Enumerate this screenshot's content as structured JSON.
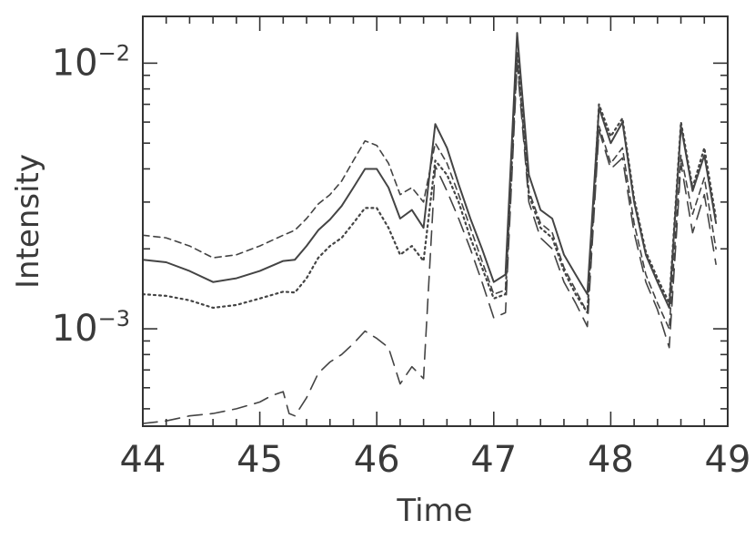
{
  "chart_data": {
    "type": "line",
    "xlabel": "Time",
    "ylabel": "Intensity",
    "xlim": [
      44,
      49
    ],
    "ylim": [
      0.00043,
      0.015
    ],
    "yscale": "log",
    "grid": false,
    "legend": "none",
    "x_ticks": [
      {
        "value": 44,
        "label": "44"
      },
      {
        "value": 45,
        "label": "45"
      },
      {
        "value": 46,
        "label": "46"
      },
      {
        "value": 47,
        "label": "47"
      },
      {
        "value": 48,
        "label": "48"
      },
      {
        "value": 49,
        "label": "49"
      }
    ],
    "y_ticks": [
      {
        "value": 0.001,
        "base": "10",
        "exp": "−3"
      },
      {
        "value": 0.01,
        "base": "10",
        "exp": "−2"
      }
    ],
    "series": [
      {
        "style": "solid",
        "x": [
          44.0,
          44.2,
          44.4,
          44.6,
          44.8,
          45.0,
          45.2,
          45.3,
          45.4,
          45.5,
          45.6,
          45.7,
          45.8,
          45.9,
          46.0,
          46.1,
          46.2,
          46.3,
          46.4,
          46.5,
          46.6,
          46.7,
          46.8,
          46.9,
          47.0,
          47.1,
          47.2,
          47.3,
          47.4,
          47.5,
          47.6,
          47.7,
          47.8,
          47.9,
          48.0,
          48.1,
          48.2,
          48.3,
          48.4,
          48.5,
          48.6,
          48.7,
          48.8,
          48.9
        ],
        "y": [
          0.00182,
          0.00178,
          0.00165,
          0.0015,
          0.00155,
          0.00165,
          0.0018,
          0.00182,
          0.00205,
          0.00235,
          0.00258,
          0.0029,
          0.0034,
          0.004,
          0.004,
          0.0034,
          0.0026,
          0.0028,
          0.0024,
          0.0059,
          0.0048,
          0.0035,
          0.0026,
          0.002,
          0.0015,
          0.0016,
          0.013,
          0.0038,
          0.0028,
          0.0026,
          0.0019,
          0.0016,
          0.00135,
          0.0068,
          0.005,
          0.006,
          0.003,
          0.0019,
          0.0015,
          0.0012,
          0.0058,
          0.0033,
          0.0045,
          0.0025
        ]
      },
      {
        "style": "dashed",
        "x": [
          44.0,
          44.2,
          44.4,
          44.6,
          44.8,
          45.0,
          45.2,
          45.3,
          45.4,
          45.5,
          45.6,
          45.7,
          45.8,
          45.9,
          46.0,
          46.1,
          46.2,
          46.3,
          46.4,
          46.5,
          46.6,
          46.7,
          46.8,
          46.9,
          47.0,
          47.1,
          47.2,
          47.3,
          47.4,
          47.5,
          47.6,
          47.7,
          47.8,
          47.9,
          48.0,
          48.1,
          48.2,
          48.3,
          48.4,
          48.5,
          48.6,
          48.7,
          48.8,
          48.9
        ],
        "y": [
          0.00225,
          0.0022,
          0.00205,
          0.00185,
          0.0019,
          0.00205,
          0.00225,
          0.00235,
          0.0026,
          0.00295,
          0.0032,
          0.0036,
          0.0043,
          0.0051,
          0.0049,
          0.0042,
          0.0032,
          0.0034,
          0.003,
          0.005,
          0.0042,
          0.0032,
          0.0024,
          0.0018,
          0.00135,
          0.0014,
          0.0105,
          0.0033,
          0.0025,
          0.0023,
          0.0017,
          0.0014,
          0.00115,
          0.0058,
          0.0042,
          0.0048,
          0.0025,
          0.0016,
          0.00125,
          0.001,
          0.0045,
          0.0027,
          0.0037,
          0.002
        ]
      },
      {
        "style": "dotted",
        "x": [
          44.0,
          44.2,
          44.4,
          44.6,
          44.8,
          45.0,
          45.2,
          45.3,
          45.4,
          45.5,
          45.6,
          45.7,
          45.8,
          45.9,
          46.0,
          46.1,
          46.2,
          46.3,
          46.4,
          46.5,
          46.6,
          46.7,
          46.8,
          46.9,
          47.0,
          47.1,
          47.2,
          47.3,
          47.4,
          47.5,
          47.6,
          47.7,
          47.8,
          47.9,
          48.0,
          48.1,
          48.2,
          48.3,
          48.4,
          48.5,
          48.6,
          48.7,
          48.8,
          48.9
        ],
        "y": [
          0.00135,
          0.00133,
          0.00128,
          0.0012,
          0.00123,
          0.0013,
          0.00138,
          0.00137,
          0.00155,
          0.00185,
          0.00205,
          0.0022,
          0.0025,
          0.00285,
          0.00285,
          0.0024,
          0.0019,
          0.00205,
          0.0018,
          0.0043,
          0.0038,
          0.003,
          0.0022,
          0.0017,
          0.0013,
          0.00135,
          0.011,
          0.0032,
          0.0024,
          0.0022,
          0.00165,
          0.00135,
          0.00115,
          0.007,
          0.0053,
          0.0062,
          0.0031,
          0.00195,
          0.00155,
          0.00125,
          0.006,
          0.0034,
          0.0048,
          0.0026
        ]
      },
      {
        "style": "long-dashed",
        "x": [
          44.0,
          44.2,
          44.4,
          44.6,
          44.8,
          45.0,
          45.1,
          45.2,
          45.25,
          45.3,
          45.4,
          45.5,
          45.6,
          45.7,
          45.8,
          45.9,
          46.0,
          46.1,
          46.2,
          46.3,
          46.4,
          46.5,
          46.6,
          46.7,
          46.8,
          46.9,
          47.0,
          47.1,
          47.2,
          47.3,
          47.4,
          47.5,
          47.6,
          47.7,
          47.8,
          47.9,
          48.0,
          48.1,
          48.2,
          48.3,
          48.4,
          48.5,
          48.6,
          48.7,
          48.8,
          48.9
        ],
        "y": [
          0.00044,
          0.00045,
          0.00047,
          0.00048,
          0.0005,
          0.00053,
          0.00056,
          0.00058,
          0.00048,
          0.00047,
          0.00055,
          0.00068,
          0.00075,
          0.0008,
          0.00088,
          0.00098,
          0.00092,
          0.00085,
          0.00062,
          0.00072,
          0.00065,
          0.0041,
          0.0033,
          0.0026,
          0.002,
          0.0015,
          0.0011,
          0.00115,
          0.01,
          0.003,
          0.0022,
          0.002,
          0.0015,
          0.00125,
          0.00102,
          0.0056,
          0.004,
          0.0044,
          0.0023,
          0.0015,
          0.00118,
          0.00085,
          0.0042,
          0.0023,
          0.0032,
          0.00175
        ]
      }
    ]
  }
}
